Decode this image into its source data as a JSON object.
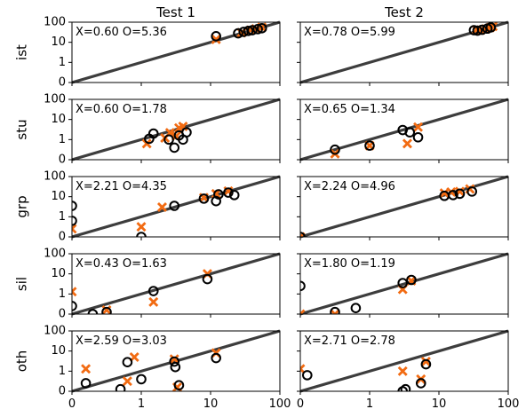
{
  "chart_data": {
    "type": "scatter",
    "layout": "grid-5x2",
    "columns": [
      "Test 1",
      "Test 2"
    ],
    "rows": [
      "ist",
      "stu",
      "grp",
      "sil",
      "oth"
    ],
    "axis": {
      "scale": "symlog",
      "lim": [
        0,
        100
      ],
      "ticks": [
        0,
        1,
        10,
        100
      ],
      "tick_labels": [
        "0",
        "1",
        "10",
        "100"
      ]
    },
    "diagonal": "y = x",
    "marker_legend": {
      "X": "orange x",
      "O": "black circle"
    },
    "colors": {
      "x_marker": "#f26b12",
      "o_marker": "#000000",
      "diagonal": "#3d3d3d"
    },
    "panels": [
      {
        "row": "ist",
        "col": "Test 1",
        "annotation": "X=0.60 O=5.36",
        "x_points": [
          [
            12,
            14
          ],
          [
            28,
            30
          ],
          [
            38,
            40
          ],
          [
            45,
            47
          ],
          [
            55,
            56
          ]
        ],
        "o_points": [
          [
            12,
            20
          ],
          [
            25,
            28
          ],
          [
            30,
            33
          ],
          [
            35,
            37
          ],
          [
            40,
            40
          ],
          [
            48,
            45
          ],
          [
            55,
            50
          ]
        ]
      },
      {
        "row": "ist",
        "col": "Test 2",
        "annotation": "X=0.78 O=5.99",
        "x_points": [
          [
            35,
            42
          ],
          [
            40,
            40
          ],
          [
            48,
            46
          ],
          [
            55,
            54
          ],
          [
            60,
            62
          ]
        ],
        "o_points": [
          [
            32,
            40
          ],
          [
            36,
            38
          ],
          [
            42,
            42
          ],
          [
            50,
            48
          ],
          [
            56,
            55
          ]
        ]
      },
      {
        "row": "stu",
        "col": "Test 1",
        "annotation": "X=0.60 O=1.78",
        "x_points": [
          [
            1.2,
            0.8
          ],
          [
            2.2,
            1.2
          ],
          [
            2.6,
            2.2
          ],
          [
            3.5,
            3.8
          ],
          [
            4.0,
            4.5
          ],
          [
            3.2,
            1.5
          ]
        ],
        "o_points": [
          [
            1.3,
            1.1
          ],
          [
            1.5,
            2.0
          ],
          [
            2.5,
            1.0
          ],
          [
            3.0,
            0.6
          ],
          [
            3.5,
            1.6
          ],
          [
            4.0,
            1.0
          ],
          [
            4.5,
            2.3
          ]
        ]
      },
      {
        "row": "stu",
        "col": "Test 2",
        "annotation": "X=0.65 O=1.34",
        "x_points": [
          [
            0.5,
            0.3
          ],
          [
            3.5,
            0.8
          ],
          [
            5.0,
            4.2
          ],
          [
            1.0,
            0.7
          ]
        ],
        "o_points": [
          [
            0.5,
            0.5
          ],
          [
            1.0,
            0.7
          ],
          [
            3.0,
            3.0
          ],
          [
            3.8,
            2.3
          ],
          [
            5.0,
            1.3
          ]
        ]
      },
      {
        "row": "grp",
        "col": "Test 1",
        "annotation": "X=2.21 O=4.35",
        "x_points": [
          [
            0.0,
            0.4
          ],
          [
            1.0,
            0.5
          ],
          [
            2.0,
            3.0
          ],
          [
            8.0,
            9.0
          ],
          [
            12.0,
            14.0
          ],
          [
            18.0,
            19.0
          ]
        ],
        "o_points": [
          [
            0.0,
            0.8
          ],
          [
            0.0,
            3.5
          ],
          [
            1.0,
            0.0
          ],
          [
            3.0,
            3.5
          ],
          [
            8.0,
            8.0
          ],
          [
            12.0,
            6.0
          ],
          [
            13.0,
            13.0
          ],
          [
            18.0,
            16.0
          ],
          [
            22.0,
            12.0
          ]
        ]
      },
      {
        "row": "grp",
        "col": "Test 2",
        "annotation": "X=2.24 O=4.96",
        "x_points": [
          [
            0.0,
            0.0
          ],
          [
            12.0,
            15.0
          ],
          [
            15.0,
            17.0
          ],
          [
            20.0,
            18.0
          ],
          [
            28.0,
            24.0
          ]
        ],
        "o_points": [
          [
            0.0,
            0.0
          ],
          [
            12.0,
            11.0
          ],
          [
            16.0,
            12.0
          ],
          [
            20.0,
            14.0
          ],
          [
            30.0,
            18.0
          ]
        ]
      },
      {
        "row": "sil",
        "col": "Test 1",
        "annotation": "X=0.43 O=1.63",
        "x_points": [
          [
            0.0,
            1.3
          ],
          [
            0.5,
            0.2
          ],
          [
            1.5,
            0.6
          ],
          [
            9.0,
            10.0
          ]
        ],
        "o_points": [
          [
            0.0,
            0.4
          ],
          [
            0.3,
            0.0
          ],
          [
            0.5,
            0.1
          ],
          [
            1.5,
            1.4
          ],
          [
            9.0,
            5.5
          ]
        ]
      },
      {
        "row": "sil",
        "col": "Test 2",
        "annotation": "X=1.80 O=1.19",
        "x_points": [
          [
            0.0,
            0.0
          ],
          [
            0.5,
            0.0
          ],
          [
            3.0,
            1.7
          ],
          [
            4.0,
            4.5
          ]
        ],
        "o_points": [
          [
            0.0,
            2.5
          ],
          [
            0.5,
            0.1
          ],
          [
            0.8,
            0.3
          ],
          [
            3.0,
            3.5
          ],
          [
            4.0,
            5.0
          ]
        ]
      },
      {
        "row": "oth",
        "col": "Test 1",
        "annotation": "X=2.59 O=3.03",
        "x_points": [
          [
            0.2,
            1.3
          ],
          [
            0.8,
            0.5
          ],
          [
            0.9,
            5.0
          ],
          [
            3.0,
            4.0
          ],
          [
            3.3,
            0.2
          ],
          [
            12.0,
            8.0
          ]
        ],
        "o_points": [
          [
            0.2,
            0.4
          ],
          [
            0.7,
            0.1
          ],
          [
            0.8,
            2.8
          ],
          [
            1.0,
            0.6
          ],
          [
            3.0,
            3.0
          ],
          [
            3.1,
            1.6
          ],
          [
            3.5,
            0.3
          ],
          [
            12.0,
            4.5
          ]
        ]
      },
      {
        "row": "oth",
        "col": "Test 2",
        "annotation": "X=2.71 O=2.78",
        "x_points": [
          [
            0.0,
            1.3
          ],
          [
            3.0,
            1.0
          ],
          [
            5.5,
            0.6
          ],
          [
            6.5,
            3.0
          ]
        ],
        "o_points": [
          [
            0.1,
            0.8
          ],
          [
            3.0,
            0.0
          ],
          [
            3.3,
            0.1
          ],
          [
            5.5,
            0.4
          ],
          [
            6.5,
            2.2
          ]
        ]
      }
    ]
  }
}
